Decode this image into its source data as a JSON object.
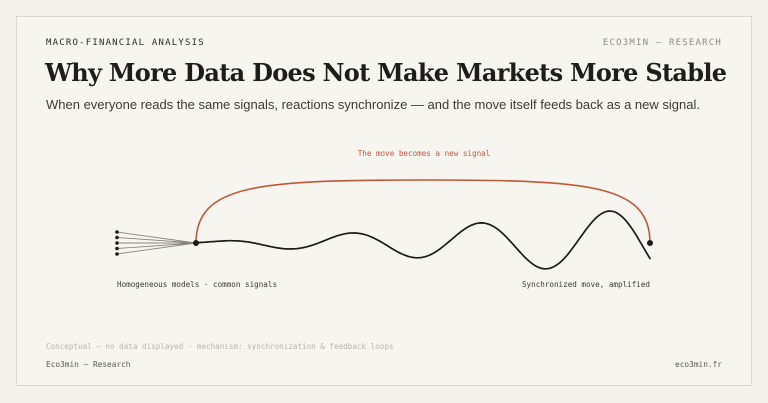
{
  "header": {
    "kicker": "MACRO-FINANCIAL ANALYSIS",
    "brand": "ECO3MIN — RESEARCH"
  },
  "title": "Why More Data Does Not Make Markets More Stable",
  "subtitle": "When everyone reads the same signals, reactions synchronize — and the move itself feeds back as a new signal.",
  "diagram": {
    "feedback_label": "The move becomes a new signal",
    "left_label": "Homogeneous models · common signals",
    "right_label": "Synchronized move, amplified",
    "input_signal_count": 5,
    "colors": {
      "feedback": "#c0573a",
      "wave": "#1c1b19",
      "fan": "#8a867d",
      "muted_text": "#3d3a35"
    }
  },
  "footer": {
    "note": "Conceptual — no data displayed · mechanism: synchronization & feedback loops",
    "left": "Eco3min — Research",
    "right": "eco3min.fr"
  }
}
